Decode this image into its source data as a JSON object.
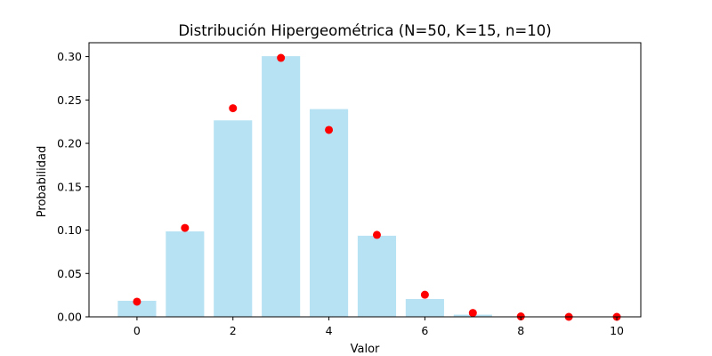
{
  "chart_data": {
    "type": "bar",
    "title": "Distribución Hipergeométrica (N=50, K=15, n=10)",
    "xlabel": "Valor",
    "ylabel": "Probabilidad",
    "x": [
      0,
      1,
      2,
      3,
      4,
      5,
      6,
      7,
      8,
      9,
      10
    ],
    "xlim": [
      -1,
      10.5
    ],
    "ylim": [
      0,
      0.316
    ],
    "xticks": [
      0,
      2,
      4,
      6,
      8,
      10
    ],
    "yticks": [
      0.0,
      0.05,
      0.1,
      0.15,
      0.2,
      0.25,
      0.3
    ],
    "xtick_labels": [
      "0",
      "2",
      "4",
      "6",
      "8",
      "10"
    ],
    "ytick_labels": [
      "0.00",
      "0.05",
      "0.10",
      "0.15",
      "0.20",
      "0.25",
      "0.30"
    ],
    "grid": false,
    "series": [
      {
        "kind": "bar",
        "color": "#87ceeb",
        "opacity": 0.6,
        "values": [
          0.0185,
          0.0985,
          0.2265,
          0.3005,
          0.2395,
          0.0935,
          0.0205,
          0.0025,
          0.0005,
          0.0,
          0.0
        ]
      },
      {
        "kind": "scatter",
        "color": "#ff0000",
        "values": [
          0.0175,
          0.1025,
          0.2405,
          0.2985,
          0.2155,
          0.0945,
          0.0255,
          0.0045,
          0.0005,
          0.0,
          0.0
        ]
      }
    ]
  }
}
